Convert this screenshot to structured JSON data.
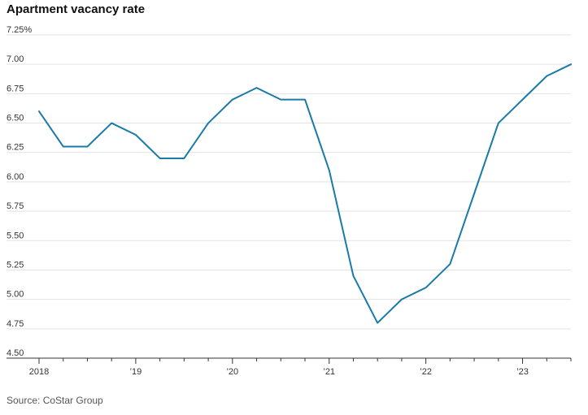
{
  "title": "Apartment vacancy rate",
  "source": "Source: CoStar Group",
  "colors": {
    "line": "#1a7aa8",
    "grid": "#e3e3e3",
    "axis": "#333333"
  },
  "chart_data": {
    "type": "line",
    "title": "Apartment vacancy rate",
    "xlabel": "",
    "ylabel": "",
    "grid": true,
    "ylim": [
      4.5,
      7.25
    ],
    "yticks": [
      {
        "value": 4.5,
        "label": "4.50"
      },
      {
        "value": 4.75,
        "label": "4.75"
      },
      {
        "value": 5.0,
        "label": "5.00"
      },
      {
        "value": 5.25,
        "label": "5.25"
      },
      {
        "value": 5.5,
        "label": "5.50"
      },
      {
        "value": 5.75,
        "label": "5.75"
      },
      {
        "value": 6.0,
        "label": "6.00"
      },
      {
        "value": 6.25,
        "label": "6.25"
      },
      {
        "value": 6.5,
        "label": "6.50"
      },
      {
        "value": 6.75,
        "label": "6.75"
      },
      {
        "value": 7.0,
        "label": "7.00"
      },
      {
        "value": 7.25,
        "label": "7.25%"
      }
    ],
    "xticks": [
      {
        "value": 2018,
        "label": "2018"
      },
      {
        "value": 2019,
        "label": "’19"
      },
      {
        "value": 2020,
        "label": "’20"
      },
      {
        "value": 2021,
        "label": "’21"
      },
      {
        "value": 2022,
        "label": "’22"
      },
      {
        "value": 2023,
        "label": "’23"
      }
    ],
    "xlim": [
      2018,
      2023.5
    ],
    "series": [
      {
        "x": [
          2018,
          2018.25,
          2018.5,
          2018.75,
          2019,
          2019.25,
          2019.5,
          2019.75,
          2020,
          2020.25,
          2020.5,
          2020.75,
          2021,
          2021.25,
          2021.5,
          2021.75,
          2022,
          2022.25,
          2022.5,
          2022.75,
          2023,
          2023.25,
          2023.5
        ],
        "values": [
          6.6,
          6.3,
          6.3,
          6.5,
          6.4,
          6.2,
          6.2,
          6.5,
          6.7,
          6.8,
          6.7,
          6.7,
          6.1,
          5.2,
          4.8,
          5.0,
          5.1,
          5.3,
          5.9,
          6.5,
          6.7,
          6.9,
          7.0
        ]
      }
    ]
  }
}
